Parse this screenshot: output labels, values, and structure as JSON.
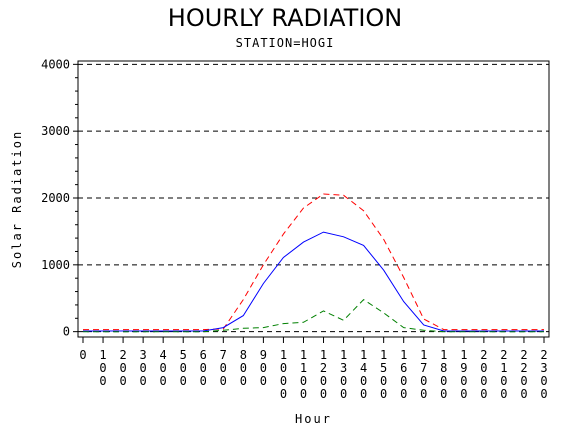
{
  "title": "HOURLY RADIATION",
  "subtitle": "STATION=HOGI",
  "chart_data": {
    "type": "line",
    "xlabel": "Hour",
    "ylabel": "Solar Radiation",
    "x_ticks": [
      "0",
      "100",
      "200",
      "300",
      "400",
      "500",
      "600",
      "700",
      "800",
      "900",
      "1000",
      "1100",
      "1200",
      "1300",
      "1400",
      "1500",
      "1600",
      "1700",
      "1800",
      "1900",
      "2000",
      "2100",
      "2200",
      "2300"
    ],
    "y_ticks": [
      0,
      1000,
      2000,
      3000,
      4000
    ],
    "xlim": [
      0,
      2300
    ],
    "ylim": [
      -80,
      4050
    ],
    "grid": "horizontal dashed",
    "x": [
      0,
      100,
      200,
      300,
      400,
      500,
      600,
      700,
      800,
      900,
      1000,
      1100,
      1200,
      1300,
      1400,
      1500,
      1600,
      1700,
      1800,
      1900,
      2000,
      2100,
      2200,
      2300
    ],
    "series": [
      {
        "color": "#ff0000",
        "style": "dashed",
        "values": [
          30,
          30,
          30,
          30,
          30,
          30,
          30,
          40,
          480,
          1000,
          1460,
          1850,
          2060,
          2040,
          1810,
          1380,
          810,
          190,
          30,
          30,
          30,
          30,
          30,
          30
        ]
      },
      {
        "color": "#0000ff",
        "style": "solid",
        "values": [
          10,
          10,
          10,
          10,
          10,
          10,
          10,
          60,
          240,
          720,
          1110,
          1340,
          1490,
          1420,
          1290,
          920,
          450,
          100,
          10,
          10,
          10,
          10,
          10,
          10
        ]
      },
      {
        "color": "#008000",
        "style": "dashed",
        "values": [
          0,
          0,
          0,
          0,
          0,
          0,
          0,
          20,
          50,
          60,
          120,
          140,
          310,
          170,
          480,
          280,
          60,
          20,
          0,
          0,
          0,
          0,
          0,
          0
        ]
      }
    ]
  }
}
